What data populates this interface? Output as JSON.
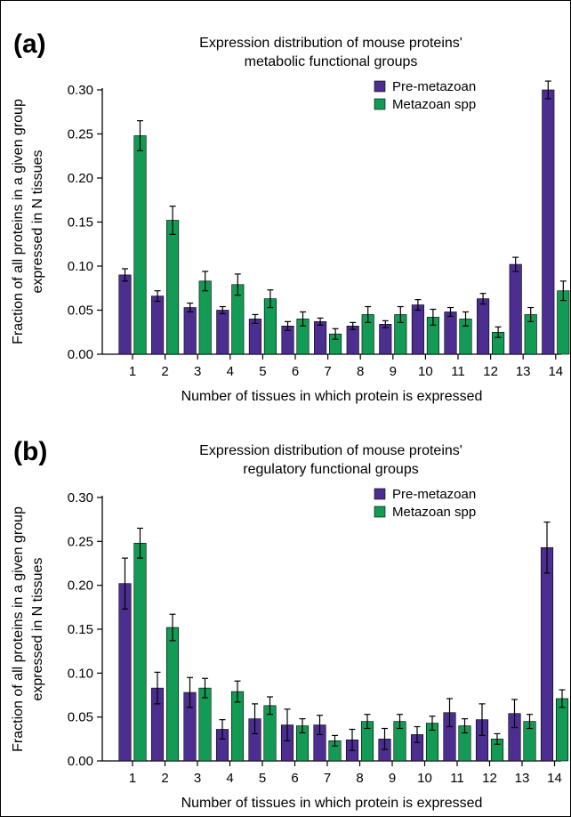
{
  "chart_data": [
    {
      "panel": "(a)",
      "type": "bar",
      "title": [
        "Expression distribution of mouse proteins'",
        "metabolic functional groups"
      ],
      "xlabel": "Number of tissues in which protein is expressed",
      "ylabel": [
        "Fraction of all proteins in a given group",
        "expressed in N tissues"
      ],
      "ylim": [
        0,
        0.3
      ],
      "yticks": [
        "0.00",
        "0.05",
        "0.10",
        "0.15",
        "0.20",
        "0.25",
        "0.30"
      ],
      "categories": [
        "1",
        "2",
        "3",
        "4",
        "5",
        "6",
        "7",
        "8",
        "9",
        "10",
        "11",
        "12",
        "13",
        "14"
      ],
      "legend_position": "top-right",
      "series": [
        {
          "name": "Pre-metazoan",
          "color": "#4b2e90",
          "values": [
            0.09,
            0.066,
            0.053,
            0.05,
            0.04,
            0.032,
            0.037,
            0.032,
            0.034,
            0.056,
            0.048,
            0.063,
            0.102,
            0.3
          ],
          "errors": [
            0.007,
            0.006,
            0.005,
            0.004,
            0.005,
            0.005,
            0.004,
            0.004,
            0.004,
            0.006,
            0.005,
            0.006,
            0.008,
            0.01
          ]
        },
        {
          "name": "Metazoan spp",
          "color": "#139a55",
          "values": [
            0.248,
            0.152,
            0.083,
            0.079,
            0.063,
            0.04,
            0.023,
            0.045,
            0.045,
            0.042,
            0.04,
            0.025,
            0.045,
            0.072
          ],
          "errors": [
            0.017,
            0.016,
            0.011,
            0.012,
            0.01,
            0.008,
            0.006,
            0.009,
            0.009,
            0.009,
            0.008,
            0.006,
            0.008,
            0.011
          ]
        }
      ]
    },
    {
      "panel": "(b)",
      "type": "bar",
      "title": [
        "Expression distribution of mouse proteins'",
        "regulatory functional groups"
      ],
      "xlabel": "Number of tissues in which protein is expressed",
      "ylabel": [
        "Fraction of all proteins in a given group",
        "expressed in N tissues"
      ],
      "ylim": [
        0,
        0.3
      ],
      "yticks": [
        "0.00",
        "0.05",
        "0.10",
        "0.15",
        "0.20",
        "0.25",
        "0.30"
      ],
      "categories": [
        "1",
        "2",
        "3",
        "4",
        "5",
        "6",
        "7",
        "8",
        "9",
        "10",
        "11",
        "12",
        "13",
        "14"
      ],
      "legend_position": "top-right",
      "series": [
        {
          "name": "Pre-metazoan",
          "color": "#4b2e90",
          "values": [
            0.202,
            0.083,
            0.078,
            0.036,
            0.048,
            0.041,
            0.041,
            0.024,
            0.025,
            0.03,
            0.055,
            0.047,
            0.054,
            0.243
          ],
          "errors": [
            0.029,
            0.018,
            0.017,
            0.011,
            0.017,
            0.018,
            0.011,
            0.012,
            0.012,
            0.009,
            0.016,
            0.018,
            0.016,
            0.029
          ]
        },
        {
          "name": "Metazoan spp",
          "color": "#139a55",
          "values": [
            0.248,
            0.152,
            0.083,
            0.079,
            0.063,
            0.04,
            0.023,
            0.045,
            0.045,
            0.043,
            0.04,
            0.025,
            0.045,
            0.071
          ],
          "errors": [
            0.017,
            0.015,
            0.011,
            0.012,
            0.01,
            0.008,
            0.006,
            0.008,
            0.008,
            0.008,
            0.008,
            0.006,
            0.008,
            0.01
          ]
        }
      ]
    }
  ]
}
